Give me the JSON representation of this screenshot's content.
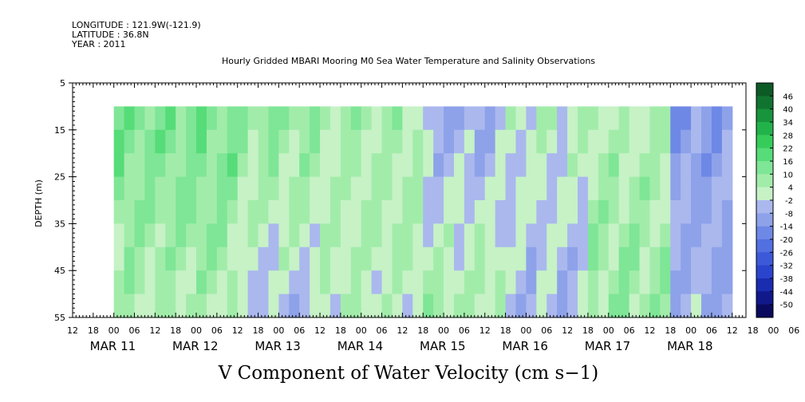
{
  "header": {
    "longitude": "LONGITUDE : 121.9W(-121.9)",
    "latitude": "LATITUDE : 36.8N",
    "year": "YEAR : 2011"
  },
  "chart_data": {
    "type": "heatmap",
    "title": "Hourly Gridded MBARI Mooring M0 Sea Water Temperature and Salinity Observations",
    "xlabel": "",
    "ylabel": "DEPTH (m)",
    "variable_label": "V Component of Water Velocity (cm s−1)",
    "ylim": [
      5,
      55
    ],
    "y_inverted": true,
    "y_ticks": [
      "5",
      "15",
      "25",
      "35",
      "45",
      "55"
    ],
    "x_start": "2011-03-10T12:00",
    "x_end": "2011-03-18T16:00",
    "x_tick_labels": [
      "12",
      "18",
      "00",
      "06",
      "12",
      "18",
      "00",
      "06",
      "12",
      "18",
      "00",
      "06",
      "12",
      "18",
      "00",
      "06",
      "12",
      "18",
      "00",
      "06",
      "12",
      "18",
      "00",
      "06",
      "12",
      "18",
      "00",
      "06",
      "12",
      "18",
      "00",
      "06",
      "12",
      "18",
      "00",
      "06",
      "12"
    ],
    "date_labels": [
      "MAR 11",
      "MAR 12",
      "MAR 13",
      "MAR 14",
      "MAR 15",
      "MAR 16",
      "MAR 17",
      "MAR 18"
    ],
    "data_x_range": [
      "2011-03-11T00:00",
      "2011-03-18T12:00"
    ],
    "data_depth_range": [
      10,
      55
    ],
    "colorbar": {
      "levels": [
        -50,
        -44,
        -38,
        -32,
        -26,
        -20,
        -14,
        -8,
        -2,
        4,
        10,
        16,
        22,
        28,
        34,
        40,
        46
      ],
      "labels": [
        "46",
        "40",
        "34",
        "28",
        "22",
        "16",
        "10",
        "4",
        "-2",
        "-8",
        "-14",
        "-20",
        "-26",
        "-32",
        "-38",
        "-44",
        "-50"
      ],
      "colors": [
        "#0a0a5e",
        "#10188a",
        "#1a2cb0",
        "#2a44cc",
        "#3c5ad8",
        "#5270e0",
        "#6e88e6",
        "#8ea2ea",
        "#aab8ee",
        "#c6f2c6",
        "#a2ecaa",
        "#7ee696",
        "#56dc78",
        "#36cc5a",
        "#22b24a",
        "#18943c",
        "#107430",
        "#0c5a26"
      ]
    },
    "pattern_note": "alternating southward (blue) and northward (green) velocity bands varying with time and depth",
    "time_bands": [
      {
        "start": "2011-03-11T00:00",
        "end": "2011-03-12T12:00",
        "v_upper": 14,
        "v_lower": 4
      },
      {
        "start": "2011-03-12T12:00",
        "end": "2011-03-13T12:00",
        "v_upper": 10,
        "v_lower": -4
      },
      {
        "start": "2011-03-13T12:00",
        "end": "2011-03-14T18:00",
        "v_upper": 6,
        "v_lower": 2
      },
      {
        "start": "2011-03-14T18:00",
        "end": "2011-03-15T18:00",
        "v_upper": -8,
        "v_lower": 6
      },
      {
        "start": "2011-03-15T18:00",
        "end": "2011-03-16T18:00",
        "v_upper": 2,
        "v_lower": -6
      },
      {
        "start": "2011-03-16T18:00",
        "end": "2011-03-17T18:00",
        "v_upper": 4,
        "v_lower": 8
      },
      {
        "start": "2011-03-17T18:00",
        "end": "2011-03-18T12:00",
        "v_upper": -12,
        "v_lower": -6
      }
    ]
  }
}
